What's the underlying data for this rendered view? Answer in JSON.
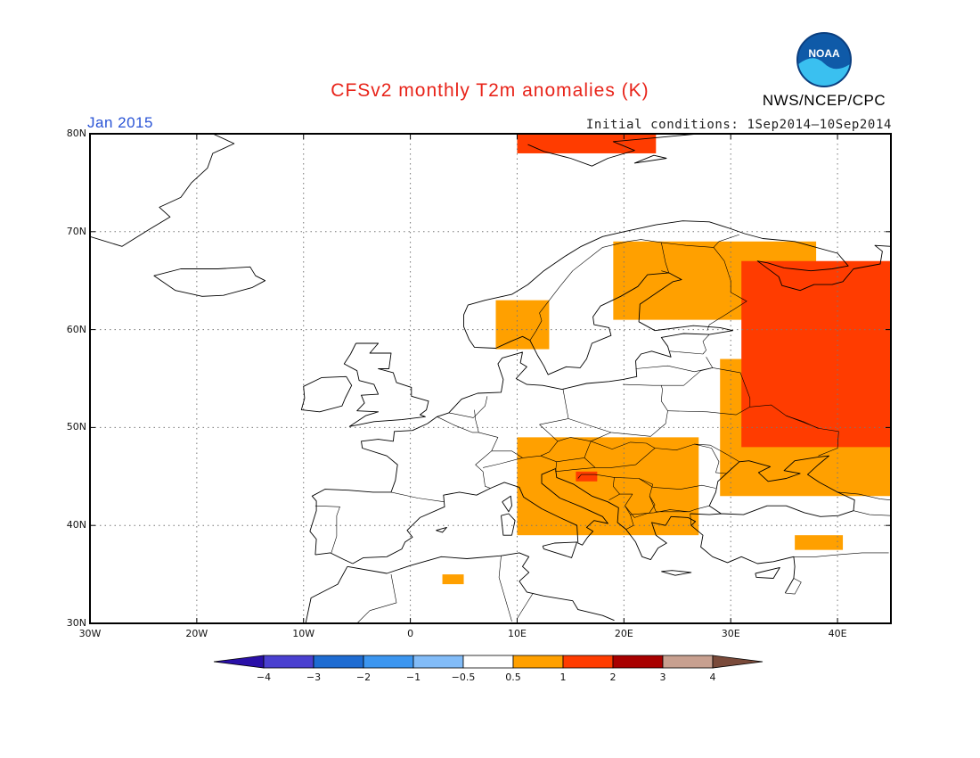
{
  "header": {
    "title": "CFSv2 monthly T2m anomalies (K)",
    "valid_month": "Jan 2015",
    "initial_conditions": "Initial conditions: 1Sep2014—10Sep2014",
    "agency": "NWS/NCEP/CPC",
    "logo_text": "NOAA",
    "title_color": "#e8241a",
    "valid_color": "#2a54d6"
  },
  "axes": {
    "lon_labels": [
      "30W",
      "20W",
      "10W",
      "0",
      "10E",
      "20E",
      "30E",
      "40E"
    ],
    "lon_values": [
      -30,
      -20,
      -10,
      0,
      10,
      20,
      30,
      40
    ],
    "lat_labels": [
      "80N",
      "70N",
      "60N",
      "50N",
      "40N",
      "30N"
    ],
    "lat_values": [
      80,
      70,
      60,
      50,
      40,
      30
    ],
    "lon_range": [
      -30,
      45
    ],
    "lat_range": [
      30,
      80
    ],
    "gridlines": "dotted"
  },
  "legend": {
    "labels": [
      "−4",
      "−3",
      "−2",
      "−1",
      "−0.5",
      "0.5",
      "1",
      "2",
      "3",
      "4"
    ],
    "colors": [
      "#2a10a8",
      "#4a40d0",
      "#1e6cd2",
      "#3c96f0",
      "#82bcf8",
      "#ffffff",
      "#ffa000",
      "#ff3c00",
      "#a80000",
      "#c8a090",
      "#7a4a3a"
    ],
    "placement": "bottom"
  },
  "anomalies": {
    "categories": [
      "0.5-1",
      "1-2"
    ],
    "colors": [
      "#ffa000",
      "#ff3c00"
    ],
    "regions": [
      {
        "name": "svalbard",
        "level": "1-2",
        "lon_range": [
          10,
          23
        ],
        "lat_range": [
          78,
          80
        ]
      },
      {
        "name": "northern-scandinavia-russia",
        "level": "0.5-1",
        "lon_range": [
          19,
          38
        ],
        "lat_range": [
          61,
          69
        ]
      },
      {
        "name": "western-russia",
        "level": "1-2",
        "lon_range": [
          31,
          45
        ],
        "lat_range": [
          48,
          67
        ]
      },
      {
        "name": "ukraine-black-sea",
        "level": "0.5-1",
        "lon_range": [
          29,
          45
        ],
        "lat_range": [
          43,
          57
        ]
      },
      {
        "name": "southern-norway",
        "level": "0.5-1",
        "lon_range": [
          8,
          13
        ],
        "lat_range": [
          58,
          63
        ]
      },
      {
        "name": "alps-balkans",
        "level": "0.5-1",
        "lon_range": [
          10,
          27
        ],
        "lat_range": [
          39,
          49
        ]
      },
      {
        "name": "croatia",
        "level": "1-2",
        "lon_range": [
          15.5,
          17.5
        ],
        "lat_range": [
          44.5,
          45.5
        ]
      },
      {
        "name": "north-africa",
        "level": "0.5-1",
        "lon_range": [
          3,
          5
        ],
        "lat_range": [
          34,
          35
        ]
      },
      {
        "name": "turkey",
        "level": "0.5-1",
        "lon_range": [
          36,
          40.5
        ],
        "lat_range": [
          37.5,
          39
        ]
      }
    ]
  }
}
